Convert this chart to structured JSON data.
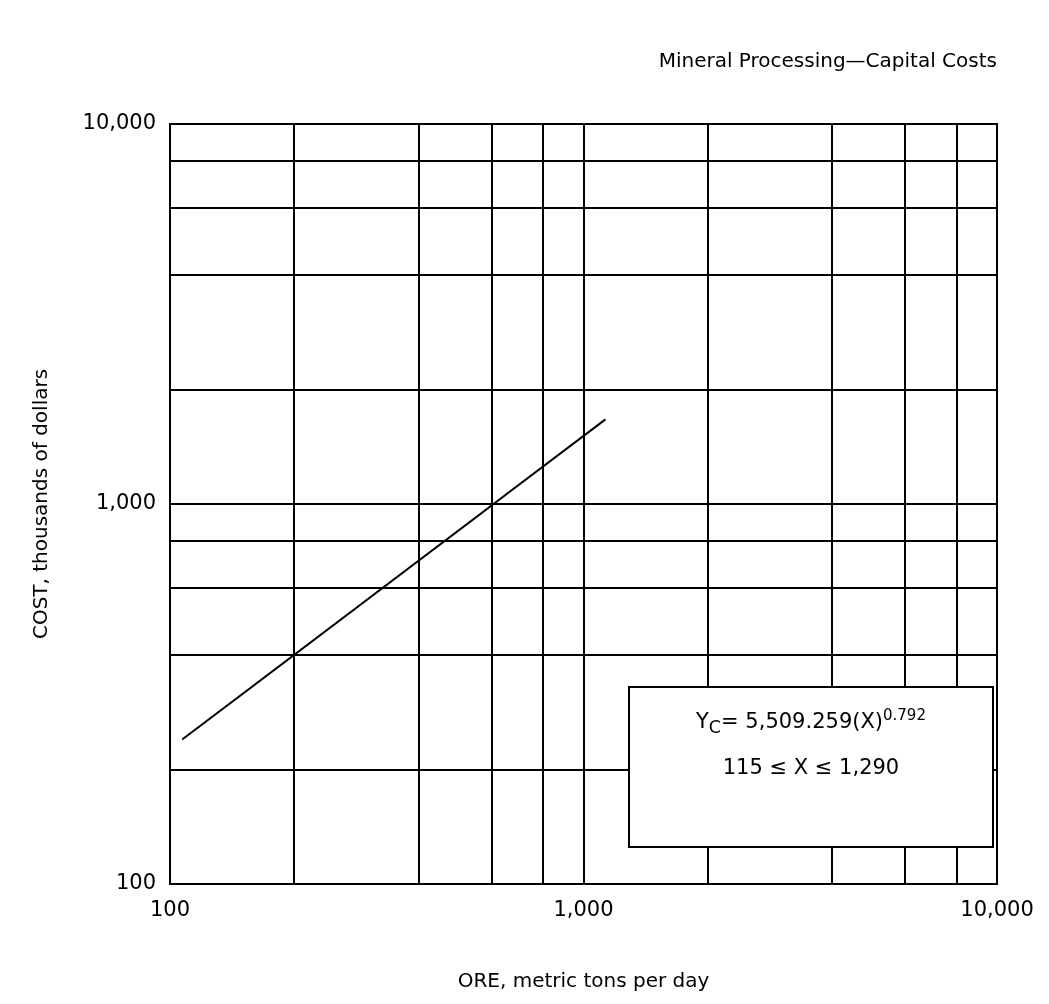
{
  "chart_data": {
    "type": "line",
    "title": "Mineral Processing—Capital Costs",
    "xlabel": "ORE, metric tons per day",
    "ylabel": "COST, thousands of dollars",
    "x": [
      107,
      1130
    ],
    "values": [
      240,
      1670
    ],
    "color": "#000000",
    "log": "xy",
    "xlim": [
      100,
      10000
    ],
    "ylim": [
      100,
      10000
    ],
    "xticks": [
      {
        "value": 100,
        "label": "100"
      },
      {
        "value": 200,
        "label": null
      },
      {
        "value": 400,
        "label": null
      },
      {
        "value": 600,
        "label": null
      },
      {
        "value": 800,
        "label": null
      },
      {
        "value": 1000,
        "label": "1,000"
      },
      {
        "value": 2000,
        "label": null
      },
      {
        "value": 4000,
        "label": null
      },
      {
        "value": 6000,
        "label": null
      },
      {
        "value": 8000,
        "label": null
      },
      {
        "value": 10000,
        "label": "10,000"
      }
    ],
    "yticks": [
      {
        "value": 100,
        "label": "100"
      },
      {
        "value": 200,
        "label": null
      },
      {
        "value": 400,
        "label": null
      },
      {
        "value": 600,
        "label": null
      },
      {
        "value": 800,
        "label": null
      },
      {
        "value": 1000,
        "label": "1,000"
      },
      {
        "value": 2000,
        "label": null
      },
      {
        "value": 4000,
        "label": null
      },
      {
        "value": 6000,
        "label": null
      },
      {
        "value": 8000,
        "label": null
      },
      {
        "value": 10000,
        "label": "10,000"
      }
    ],
    "grid": true,
    "marker": "none",
    "line_style": "solid",
    "annotations": [
      "Y$_{C}$= 5,509.259(X)$^{0.792}$",
      "115 ≤ X ≤ 1,290"
    ]
  }
}
